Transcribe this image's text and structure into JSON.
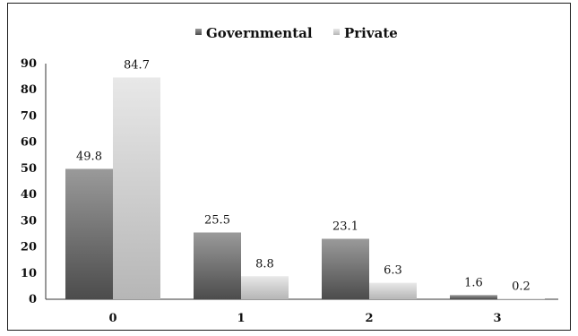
{
  "chart_data": {
    "type": "bar",
    "categories": [
      "0",
      "1",
      "2",
      "3"
    ],
    "series": [
      {
        "name": "Governmental",
        "values": [
          49.8,
          25.5,
          23.1,
          1.6
        ],
        "color_top": "#9a9a9a",
        "color_bottom": "#4c4c4c"
      },
      {
        "name": "Private",
        "values": [
          84.7,
          8.8,
          6.3,
          0.2
        ],
        "color_top": "#e8e8e8",
        "color_bottom": "#b6b6b6"
      }
    ],
    "ylim": [
      0,
      90
    ],
    "yticks": [
      "0",
      "10",
      "20",
      "30",
      "40",
      "50",
      "60",
      "70",
      "80",
      "90"
    ],
    "data_labels": [
      [
        "49.8",
        "25.5",
        "23.1",
        "1.6"
      ],
      [
        "84.7",
        "8.8",
        "6.3",
        "0.2"
      ]
    ],
    "legend_position": "top-center",
    "grid": false,
    "title": "",
    "xlabel": "",
    "ylabel": ""
  }
}
